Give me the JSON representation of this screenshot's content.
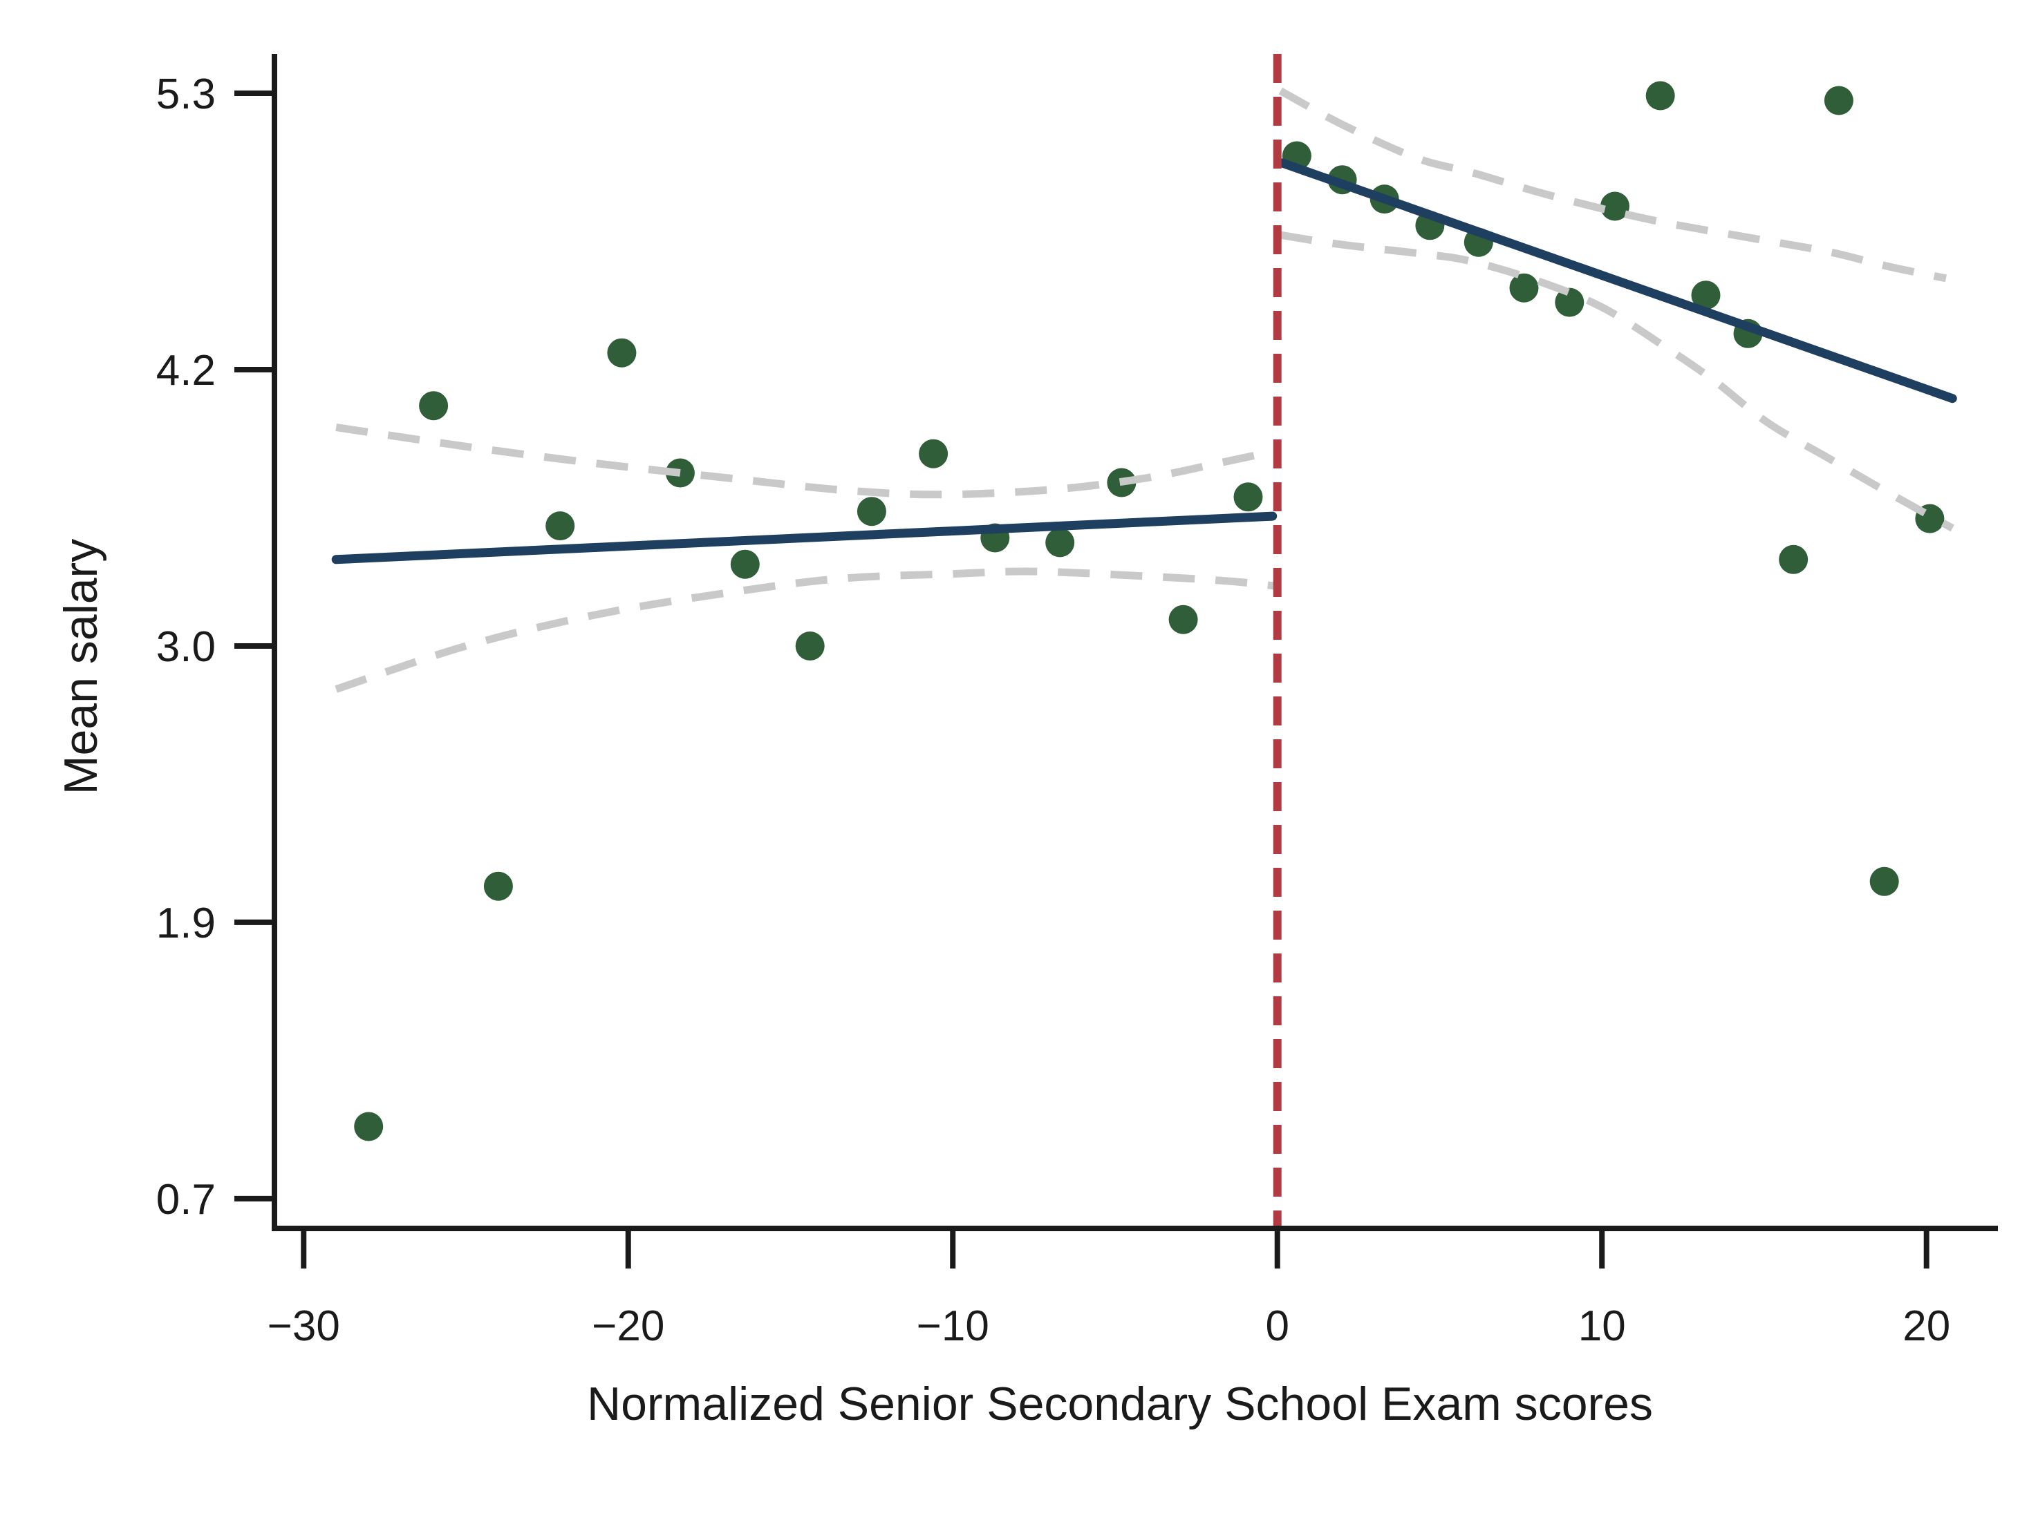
{
  "chart_data": {
    "type": "scatter",
    "title": "",
    "xlabel": "Normalized Senior Secondary School Exam scores",
    "ylabel": "Mean salary",
    "legend": "none",
    "grid": "off",
    "axes": {
      "x": {
        "range": [
          -30.9,
          22.2
        ],
        "ticks": [
          {
            "pos": -30,
            "label": "−30"
          },
          {
            "pos": -20,
            "label": "−20"
          },
          {
            "pos": -10,
            "label": "−10"
          },
          {
            "pos": 0,
            "label": "0"
          },
          {
            "pos": 10,
            "label": "10"
          },
          {
            "pos": 20,
            "label": "20"
          }
        ]
      },
      "y": {
        "range": [
          0.576,
          5.464
        ],
        "ticks": [
          {
            "pos": 5.3,
            "label": "5.3"
          },
          {
            "pos": 4.15,
            "label": "4.2"
          },
          {
            "pos": 3.0,
            "label": "3.0"
          },
          {
            "pos": 1.85,
            "label": "1.9"
          },
          {
            "pos": 0.7,
            "label": "0.7"
          }
        ]
      }
    },
    "series": [
      {
        "name": "binned-means-left-of-cutoff",
        "points": [
          [
            -28.0,
            1.0
          ],
          [
            -26.0,
            4.0
          ],
          [
            -24.0,
            2.0
          ],
          [
            -22.1,
            3.5
          ],
          [
            -20.2,
            4.22
          ],
          [
            -18.4,
            3.72
          ],
          [
            -16.4,
            3.34
          ],
          [
            -14.4,
            3.0
          ],
          [
            -12.5,
            3.56
          ],
          [
            -10.6,
            3.8
          ],
          [
            -8.7,
            3.45
          ],
          [
            -6.7,
            3.43
          ],
          [
            -4.8,
            3.68
          ],
          [
            -2.9,
            3.11
          ],
          [
            -0.9,
            3.62
          ]
        ]
      },
      {
        "name": "binned-means-right-of-cutoff",
        "points": [
          [
            0.6,
            5.04
          ],
          [
            2.0,
            4.94
          ],
          [
            3.3,
            4.86
          ],
          [
            4.7,
            4.75
          ],
          [
            6.2,
            4.68
          ],
          [
            7.6,
            4.49
          ],
          [
            9.0,
            4.43
          ],
          [
            10.4,
            4.83
          ],
          [
            11.8,
            5.29
          ],
          [
            13.2,
            4.46
          ],
          [
            14.5,
            4.3
          ],
          [
            15.9,
            3.36
          ],
          [
            17.3,
            5.27
          ],
          [
            18.7,
            2.02
          ],
          [
            20.1,
            3.53
          ]
        ]
      }
    ],
    "fit_lines": [
      {
        "name": "linear-fit-left",
        "from": [
          -29.0,
          3.36
        ],
        "to": [
          -0.15,
          3.54
        ]
      },
      {
        "name": "linear-fit-right",
        "from": [
          0.15,
          5.01
        ],
        "to": [
          20.8,
          4.03
        ]
      }
    ],
    "ci_curves": [
      {
        "name": "ci-upper-left",
        "points": [
          [
            -29.0,
            3.91
          ],
          [
            -25.0,
            3.83
          ],
          [
            -21.0,
            3.76
          ],
          [
            -17.0,
            3.7
          ],
          [
            -13.5,
            3.65
          ],
          [
            -10.5,
            3.63
          ],
          [
            -7.0,
            3.65
          ],
          [
            -4.0,
            3.7
          ],
          [
            -1.5,
            3.77
          ],
          [
            -0.1,
            3.81
          ]
        ]
      },
      {
        "name": "ci-lower-left",
        "points": [
          [
            -29.0,
            2.82
          ],
          [
            -25.0,
            3.0
          ],
          [
            -21.0,
            3.13
          ],
          [
            -17.0,
            3.22
          ],
          [
            -13.5,
            3.28
          ],
          [
            -10.0,
            3.3
          ],
          [
            -7.5,
            3.31
          ],
          [
            -4.0,
            3.29
          ],
          [
            -1.5,
            3.27
          ],
          [
            -0.1,
            3.25
          ]
        ]
      },
      {
        "name": "ci-upper-right",
        "points": [
          [
            0.1,
            5.31
          ],
          [
            2.0,
            5.17
          ],
          [
            4.3,
            5.03
          ],
          [
            6.0,
            4.97
          ],
          [
            8.0,
            4.89
          ],
          [
            10.0,
            4.82
          ],
          [
            12.0,
            4.76
          ],
          [
            14.5,
            4.7
          ],
          [
            17.0,
            4.64
          ],
          [
            18.8,
            4.58
          ],
          [
            20.6,
            4.53
          ]
        ]
      },
      {
        "name": "ci-lower-right",
        "points": [
          [
            0.1,
            4.71
          ],
          [
            2.0,
            4.67
          ],
          [
            4.6,
            4.63
          ],
          [
            6.0,
            4.6
          ],
          [
            8.0,
            4.52
          ],
          [
            10.0,
            4.41
          ],
          [
            12.0,
            4.24
          ],
          [
            13.5,
            4.1
          ],
          [
            15.1,
            3.93
          ],
          [
            17.0,
            3.78
          ],
          [
            18.8,
            3.64
          ],
          [
            20.8,
            3.49
          ]
        ]
      }
    ],
    "cutoff_line": {
      "x": 0,
      "style": "dashed"
    },
    "colors": {
      "point": "#2f5e38",
      "fit_line": "#1f3f61",
      "ci_line": "#c9c9c9",
      "cutoff_line": "#b13a43",
      "axis": "#1a1a1a",
      "background": "#ffffff"
    }
  }
}
